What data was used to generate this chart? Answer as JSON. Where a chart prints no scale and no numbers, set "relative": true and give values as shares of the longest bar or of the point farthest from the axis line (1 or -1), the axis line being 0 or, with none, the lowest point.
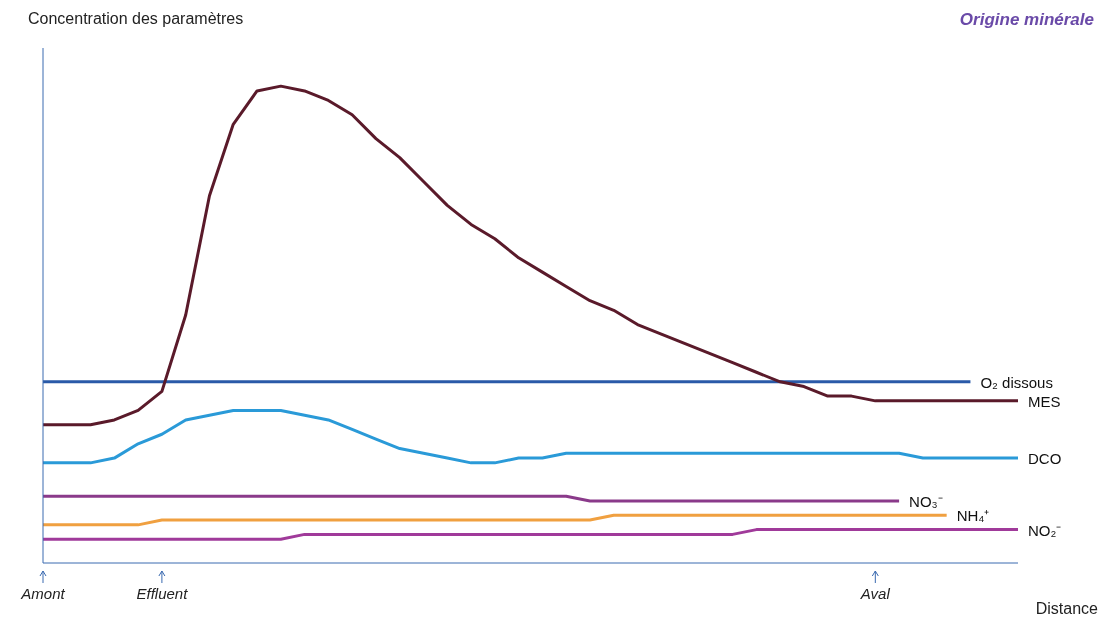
{
  "chart_data": {
    "type": "line",
    "title": "Origine minérale",
    "ylabel": "Concentration des paramètres",
    "xlabel": "Distance",
    "relative": true,
    "marker": "none",
    "line_style": "solid",
    "categories": [
      "Amont",
      null,
      null,
      null,
      null,
      "Effluent",
      null,
      null,
      null,
      null,
      null,
      null,
      null,
      null,
      null,
      null,
      null,
      null,
      null,
      null,
      null,
      null,
      null,
      null,
      null,
      null,
      null,
      null,
      null,
      null,
      null,
      null,
      null,
      null,
      null,
      "Aval",
      null,
      null,
      null,
      null,
      null,
      null
    ],
    "series": [
      {
        "name": "O₂ dissous",
        "color": "#2a5aa8",
        "values": [
          0.38,
          0.38,
          0.38,
          0.38,
          0.38,
          0.38,
          0.38,
          0.38,
          0.38,
          0.38,
          0.38,
          0.38,
          0.38,
          0.38,
          0.38,
          0.38,
          0.38,
          0.38,
          0.38,
          0.38,
          0.38,
          0.38,
          0.38,
          0.38,
          0.38,
          0.38,
          0.38,
          0.38,
          0.38,
          0.38,
          0.38,
          0.38,
          0.38,
          0.38,
          0.38,
          0.38,
          0.38,
          0.38,
          0.38,
          0.38,
          null,
          null
        ]
      },
      {
        "name": "MES",
        "color": "#5a1a2a",
        "values": [
          0.29,
          0.29,
          0.29,
          0.3,
          0.32,
          0.36,
          0.52,
          0.77,
          0.92,
          0.99,
          1,
          0.99,
          0.97,
          0.94,
          0.89,
          0.85,
          0.8,
          0.75,
          0.71,
          0.68,
          0.64,
          0.61,
          0.58,
          0.55,
          0.53,
          0.5,
          0.48,
          0.46,
          0.44,
          0.42,
          0.4,
          0.38,
          0.37,
          0.35,
          0.35,
          0.34,
          0.34,
          0.34,
          0.34,
          0.34,
          0.34,
          0.34
        ]
      },
      {
        "name": "DCO",
        "color": "#2a9ad8",
        "values": [
          0.21,
          0.21,
          0.21,
          0.22,
          0.25,
          0.27,
          0.3,
          0.31,
          0.32,
          0.32,
          0.32,
          0.31,
          0.3,
          0.28,
          0.26,
          0.24,
          0.23,
          0.22,
          0.21,
          0.21,
          0.22,
          0.22,
          0.23,
          0.23,
          0.23,
          0.23,
          0.23,
          0.23,
          0.23,
          0.23,
          0.23,
          0.23,
          0.23,
          0.23,
          0.23,
          0.23,
          0.23,
          0.22,
          0.22,
          0.22,
          0.22,
          0.22
        ]
      },
      {
        "name": "NO₃⁻",
        "color": "#8a3a8a",
        "values": [
          0.14,
          0.14,
          0.14,
          0.14,
          0.14,
          0.14,
          0.14,
          0.14,
          0.14,
          0.14,
          0.14,
          0.14,
          0.14,
          0.14,
          0.14,
          0.14,
          0.14,
          0.14,
          0.14,
          0.14,
          0.14,
          0.14,
          0.14,
          0.13,
          0.13,
          0.13,
          0.13,
          0.13,
          0.13,
          0.13,
          0.13,
          0.13,
          0.13,
          0.13,
          0.13,
          0.13,
          0.13,
          null,
          null,
          null,
          null,
          null
        ]
      },
      {
        "name": "NH₄⁺",
        "color": "#f0a040",
        "values": [
          0.08,
          0.08,
          0.08,
          0.08,
          0.08,
          0.09,
          0.09,
          0.09,
          0.09,
          0.09,
          0.09,
          0.09,
          0.09,
          0.09,
          0.09,
          0.09,
          0.09,
          0.09,
          0.09,
          0.09,
          0.09,
          0.09,
          0.09,
          0.09,
          0.1,
          0.1,
          0.1,
          0.1,
          0.1,
          0.1,
          0.1,
          0.1,
          0.1,
          0.1,
          0.1,
          0.1,
          0.1,
          0.1,
          0.1,
          null,
          null,
          null
        ]
      },
      {
        "name": "NO₂⁻",
        "color": "#a03a9a",
        "values": [
          0.05,
          0.05,
          0.05,
          0.05,
          0.05,
          0.05,
          0.05,
          0.05,
          0.05,
          0.05,
          0.05,
          0.06,
          0.06,
          0.06,
          0.06,
          0.06,
          0.06,
          0.06,
          0.06,
          0.06,
          0.06,
          0.06,
          0.06,
          0.06,
          0.06,
          0.06,
          0.06,
          0.06,
          0.06,
          0.06,
          0.07,
          0.07,
          0.07,
          0.07,
          0.07,
          0.07,
          0.07,
          0.07,
          0.07,
          0.07,
          0.07,
          0.07
        ]
      }
    ]
  }
}
